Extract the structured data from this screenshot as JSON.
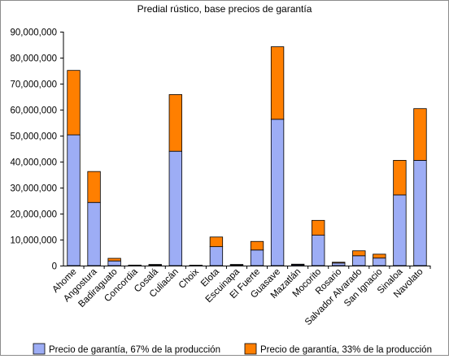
{
  "chart_data": {
    "type": "bar",
    "stacked": true,
    "title": "Predial rústico, base precios de garantía",
    "xlabel": "",
    "ylabel": "",
    "ylim": [
      0,
      90000000
    ],
    "yticks": [
      0,
      10000000,
      20000000,
      30000000,
      40000000,
      50000000,
      60000000,
      70000000,
      80000000,
      90000000
    ],
    "ytick_labels": [
      "0",
      "10,000,000",
      "20,000,000",
      "30,000,000",
      "40,000,000",
      "50,000,000",
      "60,000,000",
      "70,000,000",
      "80,000,000",
      "90,000,000"
    ],
    "grid": false,
    "legend_position": "bottom",
    "categories": [
      "Ahome",
      "Angostura",
      "Badiraguato",
      "Concordia",
      "Cosalá",
      "Culiacán",
      "Choix",
      "Elota",
      "Escuinapa",
      "El Fuerte",
      "Guasave",
      "Mazatlán",
      "Mocorito",
      "Rosario",
      "Salvador Alvarado",
      "San Ignacio",
      "Sinaloa",
      "Navolato"
    ],
    "series": [
      {
        "name": "Precio de garantía, 67% de la producción",
        "color": "#9dadf5",
        "values": [
          50300000,
          24300000,
          1800000,
          120000,
          300000,
          44000000,
          100000,
          7300000,
          300000,
          6000000,
          56300000,
          350000,
          11700000,
          1000000,
          3800000,
          2900000,
          27200000,
          40500000
        ]
      },
      {
        "name": "Precio de garantía, 33% de la producción",
        "color": "#ff7f00",
        "values": [
          24800000,
          11900000,
          1000000,
          80000,
          150000,
          21800000,
          50000,
          3700000,
          150000,
          3300000,
          27900000,
          200000,
          5700000,
          300000,
          1900000,
          1500000,
          13300000,
          19900000
        ]
      }
    ]
  }
}
